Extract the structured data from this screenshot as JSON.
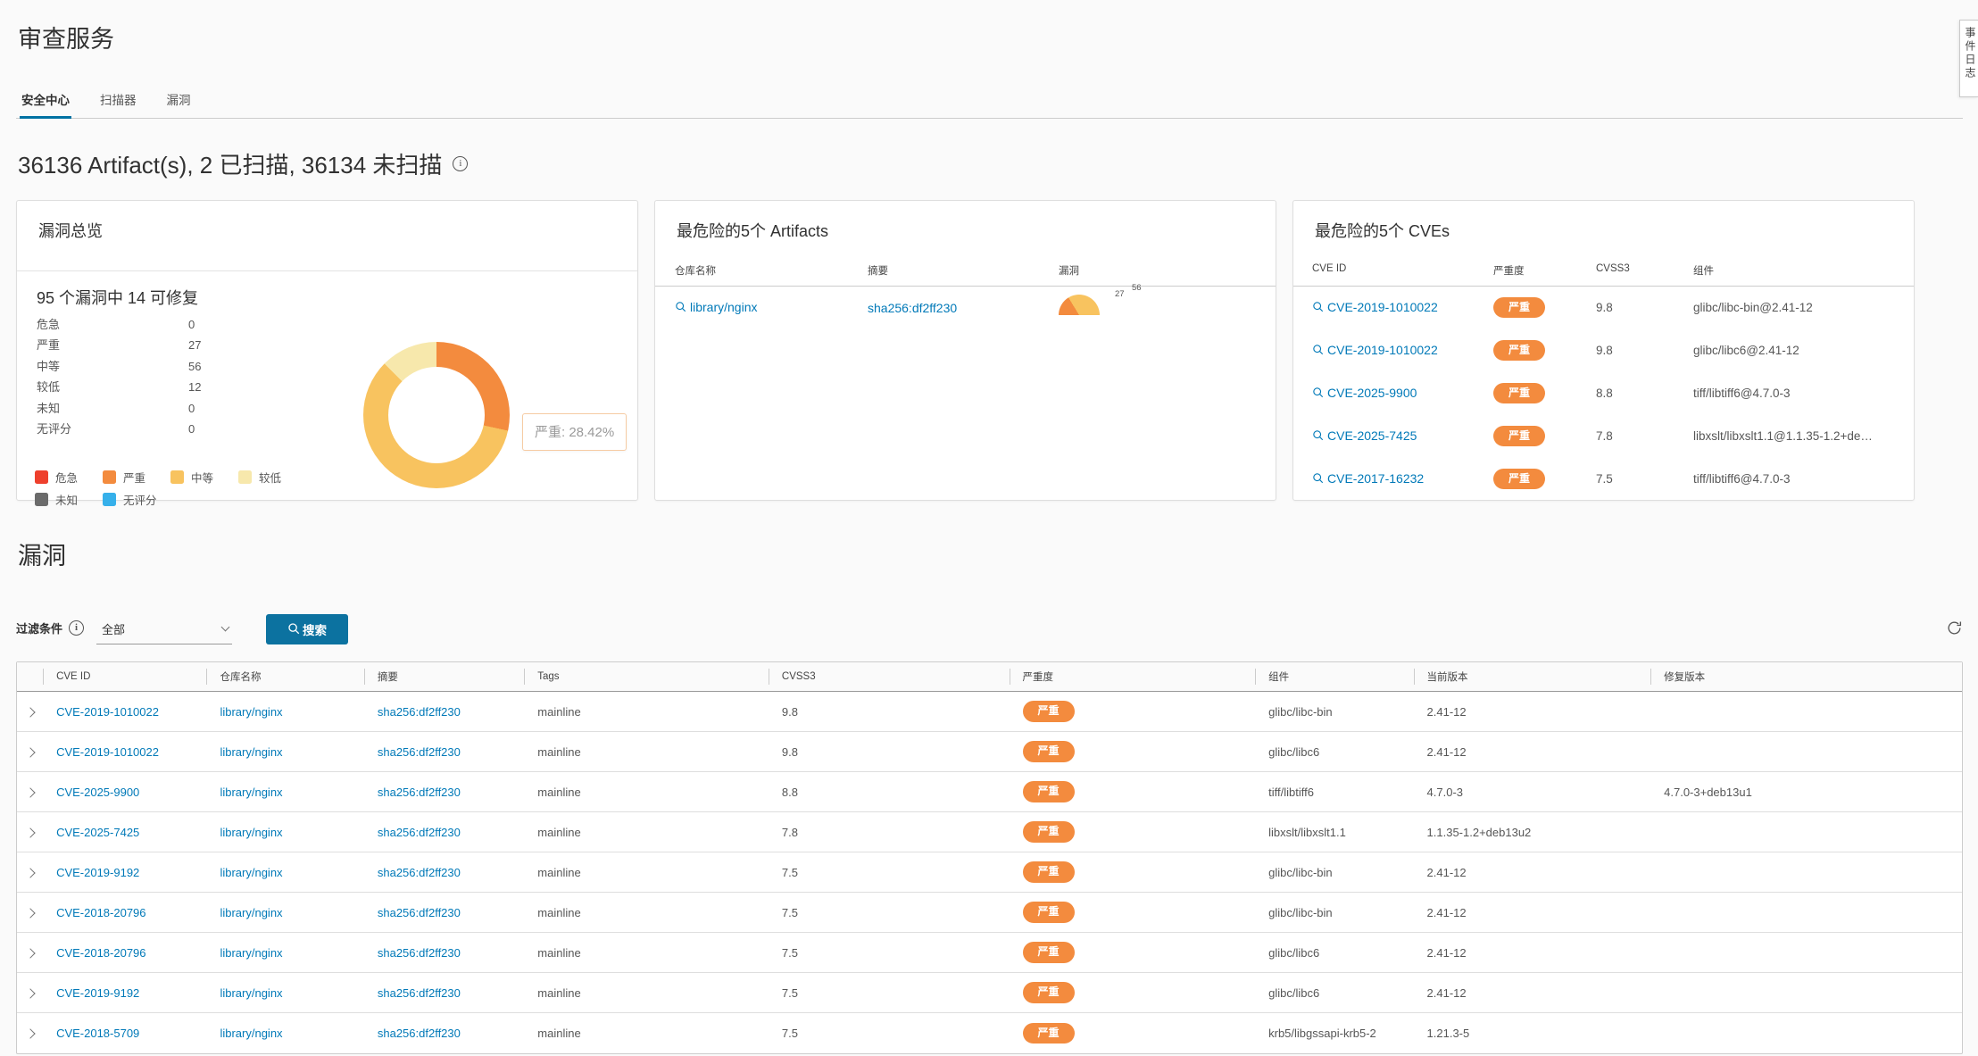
{
  "page": {
    "title": "审查服务",
    "side_tab": "事件日志"
  },
  "tabs": [
    {
      "label": "安全中心",
      "active": true
    },
    {
      "label": "扫描器",
      "active": false
    },
    {
      "label": "漏洞",
      "active": false
    }
  ],
  "summary": {
    "text": "36136 Artifact(s), 2 已扫描, 36134 未扫描"
  },
  "colors": {
    "critical": "#ee402d",
    "high": "#f38b3e",
    "medium": "#f8c35f",
    "low": "#f7e8ac",
    "unknown": "#6b6b6b",
    "none": "#36b0ea",
    "link": "#0079b8",
    "primary": "#0c72a0"
  },
  "overview": {
    "title": "漏洞总览",
    "summary": "95 个漏洞中 14 可修复",
    "severities": [
      {
        "label": "危急",
        "value": "0"
      },
      {
        "label": "严重",
        "value": "27"
      },
      {
        "label": "中等",
        "value": "56"
      },
      {
        "label": "较低",
        "value": "12"
      },
      {
        "label": "未知",
        "value": "0"
      },
      {
        "label": "无评分",
        "value": "0"
      }
    ],
    "legend": [
      {
        "label": "危急",
        "color": "#ee402d"
      },
      {
        "label": "严重",
        "color": "#f38b3e"
      },
      {
        "label": "中等",
        "color": "#f8c35f"
      },
      {
        "label": "较低",
        "color": "#f7e8ac"
      },
      {
        "label": "未知",
        "color": "#6b6b6b"
      },
      {
        "label": "无评分",
        "color": "#36b0ea"
      }
    ],
    "tooltip": "严重: 28.42%"
  },
  "top_artifacts": {
    "title": "最危险的5个 Artifacts",
    "columns": [
      "仓库名称",
      "摘要",
      "漏洞"
    ],
    "rows": [
      {
        "repo": "library/nginx",
        "digest": "sha256:df2ff230",
        "gauge_labels": [
          "27",
          "56"
        ]
      }
    ]
  },
  "top_cves": {
    "title": "最危险的5个 CVEs",
    "columns": [
      "CVE ID",
      "严重度",
      "CVSS3",
      "组件"
    ],
    "rows": [
      {
        "cve": "CVE-2019-1010022",
        "severity": "严重",
        "cvss": "9.8",
        "component": "glibc/libc-bin@2.41-12"
      },
      {
        "cve": "CVE-2019-1010022",
        "severity": "严重",
        "cvss": "9.8",
        "component": "glibc/libc6@2.41-12"
      },
      {
        "cve": "CVE-2025-9900",
        "severity": "严重",
        "cvss": "8.8",
        "component": "tiff/libtiff6@4.7.0-3"
      },
      {
        "cve": "CVE-2025-7425",
        "severity": "严重",
        "cvss": "7.8",
        "component": "libxslt/libxslt1.1@1.1.35-1.2+de…"
      },
      {
        "cve": "CVE-2017-16232",
        "severity": "严重",
        "cvss": "7.5",
        "component": "tiff/libtiff6@4.7.0-3"
      }
    ]
  },
  "vuln": {
    "title": "漏洞",
    "filter_label": "过滤条件",
    "filter_value": "全部",
    "search_label": "搜索"
  },
  "table": {
    "columns": [
      "",
      "CVE ID",
      "仓库名称",
      "摘要",
      "Tags",
      "CVSS3",
      "严重度",
      "组件",
      "当前版本",
      "修复版本"
    ],
    "widths": [
      29,
      183,
      176,
      179,
      273,
      269,
      275,
      177,
      265,
      348
    ],
    "rows": [
      {
        "cve": "CVE-2019-1010022",
        "repo": "library/nginx",
        "digest": "sha256:df2ff230",
        "tag": "mainline",
        "cvss": "9.8",
        "severity": "严重",
        "component": "glibc/libc-bin",
        "current": "2.41-12",
        "fixed": ""
      },
      {
        "cve": "CVE-2019-1010022",
        "repo": "library/nginx",
        "digest": "sha256:df2ff230",
        "tag": "mainline",
        "cvss": "9.8",
        "severity": "严重",
        "component": "glibc/libc6",
        "current": "2.41-12",
        "fixed": ""
      },
      {
        "cve": "CVE-2025-9900",
        "repo": "library/nginx",
        "digest": "sha256:df2ff230",
        "tag": "mainline",
        "cvss": "8.8",
        "severity": "严重",
        "component": "tiff/libtiff6",
        "current": "4.7.0-3",
        "fixed": "4.7.0-3+deb13u1"
      },
      {
        "cve": "CVE-2025-7425",
        "repo": "library/nginx",
        "digest": "sha256:df2ff230",
        "tag": "mainline",
        "cvss": "7.8",
        "severity": "严重",
        "component": "libxslt/libxslt1.1",
        "current": "1.1.35-1.2+deb13u2",
        "fixed": ""
      },
      {
        "cve": "CVE-2019-9192",
        "repo": "library/nginx",
        "digest": "sha256:df2ff230",
        "tag": "mainline",
        "cvss": "7.5",
        "severity": "严重",
        "component": "glibc/libc-bin",
        "current": "2.41-12",
        "fixed": ""
      },
      {
        "cve": "CVE-2018-20796",
        "repo": "library/nginx",
        "digest": "sha256:df2ff230",
        "tag": "mainline",
        "cvss": "7.5",
        "severity": "严重",
        "component": "glibc/libc-bin",
        "current": "2.41-12",
        "fixed": ""
      },
      {
        "cve": "CVE-2018-20796",
        "repo": "library/nginx",
        "digest": "sha256:df2ff230",
        "tag": "mainline",
        "cvss": "7.5",
        "severity": "严重",
        "component": "glibc/libc6",
        "current": "2.41-12",
        "fixed": ""
      },
      {
        "cve": "CVE-2019-9192",
        "repo": "library/nginx",
        "digest": "sha256:df2ff230",
        "tag": "mainline",
        "cvss": "7.5",
        "severity": "严重",
        "component": "glibc/libc6",
        "current": "2.41-12",
        "fixed": ""
      },
      {
        "cve": "CVE-2018-5709",
        "repo": "library/nginx",
        "digest": "sha256:df2ff230",
        "tag": "mainline",
        "cvss": "7.5",
        "severity": "严重",
        "component": "krb5/libgssapi-krb5-2",
        "current": "1.21.3-5",
        "fixed": ""
      }
    ]
  },
  "chart_data": [
    {
      "type": "pie",
      "variant": "donut",
      "title": "漏洞总览",
      "labels": [
        "危急",
        "严重",
        "中等",
        "较低",
        "未知",
        "无评分"
      ],
      "values": [
        0,
        27,
        56,
        12,
        0,
        0
      ],
      "colors": [
        "#ee402d",
        "#f38b3e",
        "#f8c35f",
        "#f7e8ac",
        "#6b6b6b",
        "#36b0ea"
      ],
      "total": 95,
      "fixable": 14,
      "tooltip": "严重: 28.42%",
      "legend_position": "bottom-left"
    },
    {
      "type": "pie",
      "variant": "half-gauge",
      "title": "library/nginx 漏洞",
      "labels": [
        "严重",
        "中等"
      ],
      "values": [
        27,
        56
      ],
      "colors": [
        "#f38b3e",
        "#f8c35f"
      ]
    }
  ]
}
